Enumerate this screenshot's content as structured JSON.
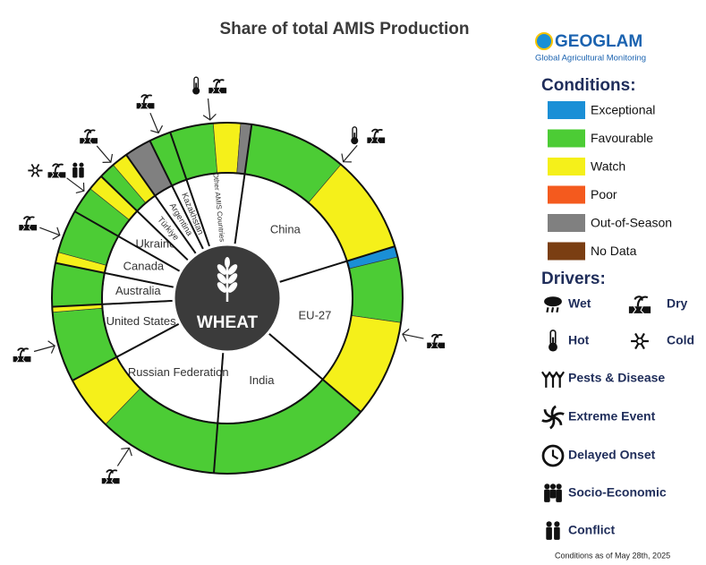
{
  "chart_data": {
    "type": "donut",
    "title": "Share of total AMIS Production",
    "center_label": "WHEAT",
    "countries": [
      {
        "name": "China",
        "share": 18,
        "segments": [
          {
            "condition": "Favourable",
            "value": 9
          },
          {
            "condition": "Watch",
            "value": 9
          }
        ],
        "drivers": [
          "Hot",
          "Dry"
        ]
      },
      {
        "name": "EU-27",
        "share": 16,
        "segments": [
          {
            "condition": "Exceptional",
            "value": 1
          },
          {
            "condition": "Favourable",
            "value": 6
          },
          {
            "condition": "Watch",
            "value": 9
          }
        ],
        "drivers": [
          "Dry"
        ]
      },
      {
        "name": "India",
        "share": 15,
        "segments": [
          {
            "condition": "Favourable",
            "value": 15
          }
        ],
        "drivers": []
      },
      {
        "name": "Russian Federation",
        "share": 16,
        "segments": [
          {
            "condition": "Favourable",
            "value": 11
          },
          {
            "condition": "Watch",
            "value": 5
          }
        ],
        "drivers": [
          "Dry"
        ]
      },
      {
        "name": "United States",
        "share": 7,
        "segments": [
          {
            "condition": "Favourable",
            "value": 6.5
          },
          {
            "condition": "Watch",
            "value": 0.5
          }
        ],
        "drivers": [
          "Dry"
        ]
      },
      {
        "name": "Australia",
        "share": 4,
        "segments": [
          {
            "condition": "Favourable",
            "value": 4
          }
        ],
        "drivers": []
      },
      {
        "name": "Canada",
        "share": 5,
        "segments": [
          {
            "condition": "Watch",
            "value": 1
          },
          {
            "condition": "Favourable",
            "value": 4
          }
        ],
        "drivers": [
          "Dry"
        ]
      },
      {
        "name": "Ukraine",
        "share": 4,
        "segments": [
          {
            "condition": "Favourable",
            "value": 2.5
          },
          {
            "condition": "Watch",
            "value": 1.5
          }
        ],
        "drivers": [
          "Cold",
          "Dry",
          "Conflict"
        ]
      },
      {
        "name": "Türkiye",
        "share": 3,
        "segments": [
          {
            "condition": "Favourable",
            "value": 1.5
          },
          {
            "condition": "Watch",
            "value": 1.5
          }
        ],
        "drivers": [
          "Dry"
        ]
      },
      {
        "name": "Argentina",
        "share": 2.5,
        "segments": [
          {
            "condition": "Out-of-Season",
            "value": 2.5
          }
        ],
        "drivers": []
      },
      {
        "name": "Kazakhstan",
        "share": 2,
        "segments": [
          {
            "condition": "Favourable",
            "value": 2
          }
        ],
        "drivers": [
          "Dry"
        ]
      },
      {
        "name": "Other AMIS Countries",
        "share": 7.5,
        "segments": [
          {
            "condition": "Favourable",
            "value": 4
          },
          {
            "condition": "Watch",
            "value": 2.5
          },
          {
            "condition": "Out-of-Season",
            "value": 1
          }
        ],
        "drivers": [
          "Hot",
          "Dry"
        ]
      }
    ],
    "conditions_legend": {
      "title": "Conditions:",
      "items": [
        {
          "name": "Exceptional",
          "color": "#1a8fd6"
        },
        {
          "name": "Favourable",
          "color": "#4ccc35"
        },
        {
          "name": "Watch",
          "color": "#f5f01a"
        },
        {
          "name": "Poor",
          "color": "#f45a1e"
        },
        {
          "name": "Out-of-Season",
          "color": "#808080"
        },
        {
          "name": "No Data",
          "color": "#7a3e12"
        }
      ]
    },
    "drivers_legend": {
      "title": "Drivers:",
      "items": [
        "Wet",
        "Dry",
        "Hot",
        "Cold",
        "Pests & Disease",
        "Extreme Event",
        "Delayed Onset",
        "Socio-Economic",
        "Conflict"
      ]
    },
    "logo": {
      "name": "GEOGLAM",
      "tagline": "Global Agricultural Monitoring"
    },
    "note": "Conditions as of May 28th, 2025"
  }
}
